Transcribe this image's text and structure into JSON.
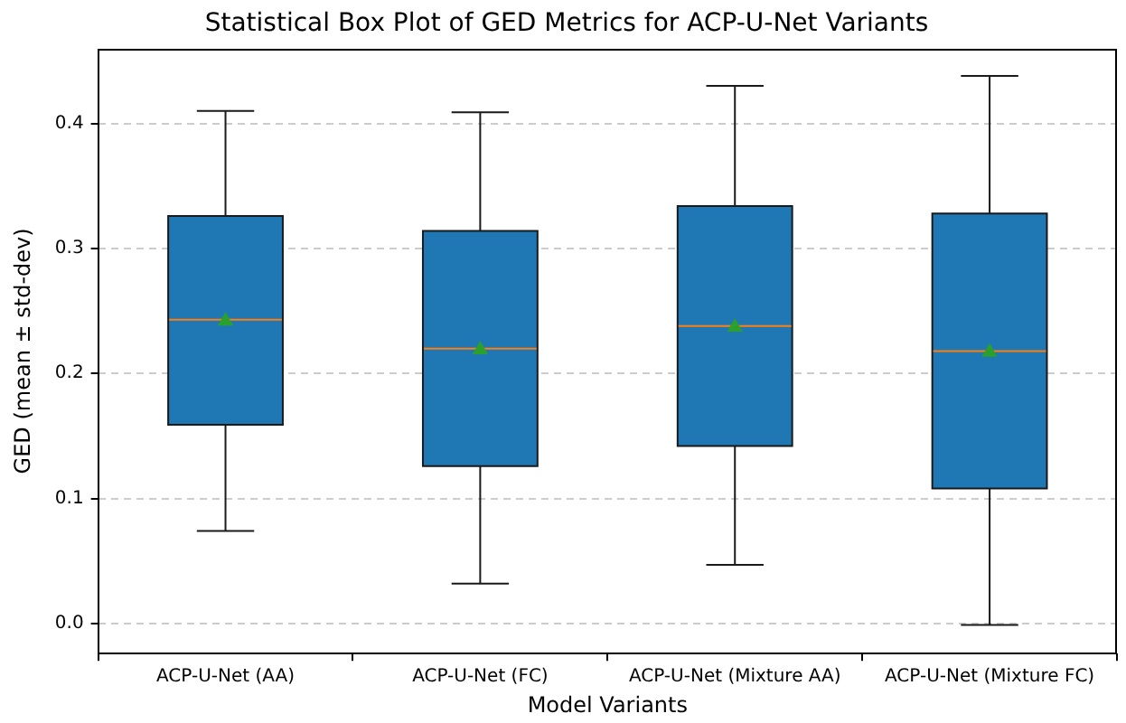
{
  "chart_data": {
    "type": "box",
    "title": "Statistical Box Plot of GED Metrics for ACP-U-Net Variants",
    "xlabel": "Model Variants",
    "ylabel": "GED (mean ± std-dev)",
    "categories": [
      "ACP-U-Net (AA)",
      "ACP-U-Net (FC)",
      "ACP-U-Net (Mixture AA)",
      "ACP-U-Net (Mixture FC)"
    ],
    "boxes": [
      {
        "low": 0.074,
        "q1": 0.159,
        "median": 0.243,
        "q3": 0.326,
        "high": 0.41,
        "mean": 0.242
      },
      {
        "low": 0.032,
        "q1": 0.126,
        "median": 0.22,
        "q3": 0.314,
        "high": 0.409,
        "mean": 0.219
      },
      {
        "low": 0.047,
        "q1": 0.142,
        "median": 0.238,
        "q3": 0.334,
        "high": 0.43,
        "mean": 0.237
      },
      {
        "low": -0.001,
        "q1": 0.108,
        "median": 0.218,
        "q3": 0.328,
        "high": 0.438,
        "mean": 0.217
      }
    ],
    "color": "#1f77b4",
    "marker": "triangle",
    "ylim": [
      -0.024,
      0.46
    ],
    "yticks": [
      {
        "value": 0,
        "label": "0.0"
      },
      0.1,
      0.2,
      0.3,
      0.4
    ],
    "grid": "y"
  }
}
